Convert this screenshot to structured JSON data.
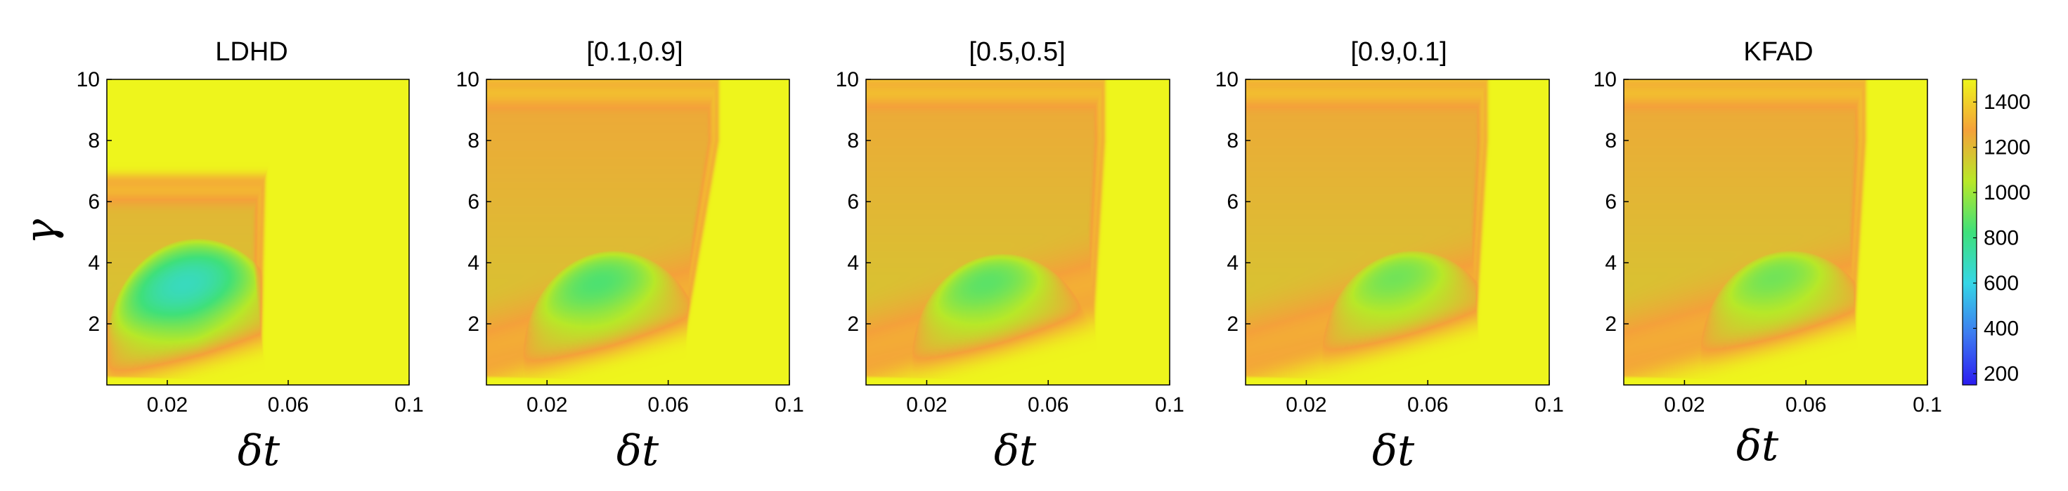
{
  "chart_data": {
    "type": "heatmap",
    "colormap": [
      "#2b1cf0",
      "#3d7bf0",
      "#35d6e6",
      "#3fe07a",
      "#b8e828",
      "#f4a13a",
      "#eef51c"
    ],
    "colorbar": {
      "ticks": [
        "200",
        "400",
        "600",
        "800",
        "1000",
        "1200",
        "1400"
      ],
      "range": [
        150,
        1500
      ]
    },
    "panels": [
      {
        "title": "LDHD",
        "show_ylabel": true,
        "show_yticks": true,
        "xlabel": "δt",
        "ylabel": "γ",
        "xlim": [
          0.0,
          0.1
        ],
        "ylim": [
          0,
          10
        ],
        "xticks": [
          "0.02",
          "0.06",
          "0.1"
        ],
        "yticks": [
          "2",
          "4",
          "6",
          "8",
          "10"
        ],
        "region": {
          "lower_slope": 28,
          "x0": 0.009,
          "x_right_low": 0.051,
          "x_right_high": 0.053,
          "y_top": 7.0,
          "core_x": 0.03,
          "core_y": 1.3,
          "min_value": 200
        }
      },
      {
        "title": "[0.1,0.9]",
        "show_ylabel": false,
        "show_yticks": true,
        "xlabel": "δt",
        "ylabel": "",
        "xlim": [
          0.0,
          0.1
        ],
        "ylim": [
          0,
          10
        ],
        "xticks": [
          "0.02",
          "0.06",
          "0.1"
        ],
        "yticks": [
          "2",
          "4",
          "6",
          "8",
          "10"
        ],
        "region": {
          "lower_slope": 28,
          "x0": 0.009,
          "x_right_low": 0.063,
          "x_right_high": 0.077,
          "y_top": 10.2,
          "core_x": 0.042,
          "core_y": 0.9,
          "min_value": 230
        }
      },
      {
        "title": "[0.5,0.5]",
        "show_ylabel": false,
        "show_yticks": true,
        "xlabel": "δt",
        "ylabel": "",
        "xlim": [
          0.0,
          0.1
        ],
        "ylim": [
          0,
          10
        ],
        "xticks": [
          "0.02",
          "0.06",
          "0.1"
        ],
        "yticks": [
          "2",
          "4",
          "6",
          "8",
          "10"
        ],
        "region": {
          "lower_slope": 28,
          "x0": 0.009,
          "x_right_low": 0.074,
          "x_right_high": 0.079,
          "y_top": 10.2,
          "core_x": 0.045,
          "core_y": 0.8,
          "min_value": 200
        }
      },
      {
        "title": "[0.9,0.1]",
        "show_ylabel": false,
        "show_yticks": true,
        "xlabel": "δt",
        "ylabel": "",
        "xlim": [
          0.0,
          0.1
        ],
        "ylim": [
          0,
          10
        ],
        "xticks": [
          "0.02",
          "0.06",
          "0.1"
        ],
        "yticks": [
          "2",
          "4",
          "6",
          "8",
          "10"
        ],
        "region": {
          "lower_slope": 28,
          "x0": 0.009,
          "x_right_low": 0.075,
          "x_right_high": 0.08,
          "y_top": 10.2,
          "core_x": 0.055,
          "core_y": 0.9,
          "min_value": 200
        }
      },
      {
        "title": "KFAD",
        "show_ylabel": false,
        "show_yticks": true,
        "xlabel": "δt",
        "ylabel": "",
        "xlim": [
          0.0,
          0.1
        ],
        "ylim": [
          0,
          10
        ],
        "xticks": [
          "0.02",
          "0.06",
          "0.1"
        ],
        "yticks": [
          "2",
          "4",
          "6",
          "8",
          "10"
        ],
        "region": {
          "lower_slope": 28,
          "x0": 0.009,
          "x_right_low": 0.075,
          "x_right_high": 0.08,
          "y_top": 10.2,
          "core_x": 0.055,
          "core_y": 0.9,
          "min_value": 200
        }
      }
    ]
  }
}
